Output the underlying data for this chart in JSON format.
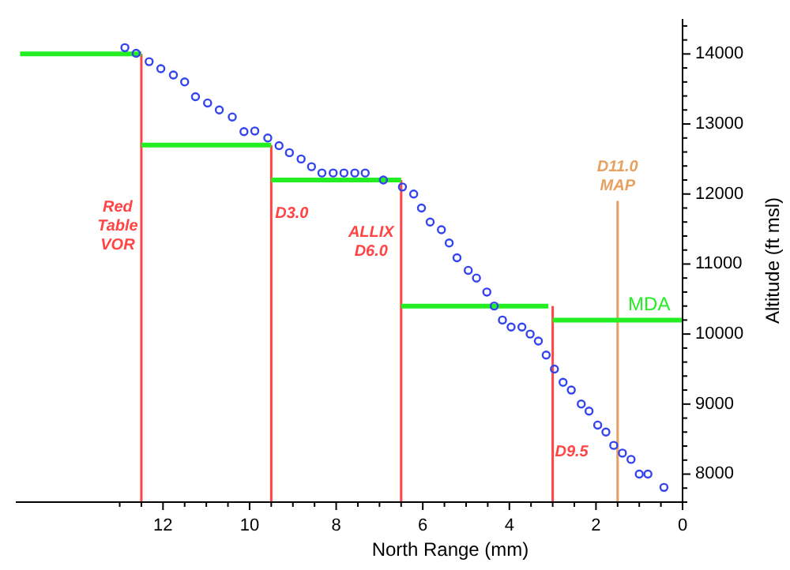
{
  "chart_data": {
    "type": "scatter",
    "xlabel": "North Range (mm)",
    "ylabel": "Altitude (ft msl)",
    "xlim": [
      15.4,
      0
    ],
    "ylim": [
      7600,
      14500
    ],
    "xticks": [
      {
        "value": 13,
        "label": null
      },
      {
        "value": 12.5,
        "label": null
      },
      12,
      {
        "value": 11.5,
        "label": null
      },
      {
        "value": 11,
        "label": null
      },
      {
        "value": 10.5,
        "label": null
      },
      10,
      {
        "value": 9.5,
        "label": null
      },
      {
        "value": 9,
        "label": null
      },
      {
        "value": 8.5,
        "label": null
      },
      8,
      {
        "value": 7.5,
        "label": null
      },
      {
        "value": 7,
        "label": null
      },
      {
        "value": 6.5,
        "label": null
      },
      6,
      {
        "value": 5.5,
        "label": null
      },
      {
        "value": 5,
        "label": null
      },
      {
        "value": 4.5,
        "label": null
      },
      4,
      {
        "value": 3.5,
        "label": null
      },
      {
        "value": 3,
        "label": null
      },
      {
        "value": 2.5,
        "label": null
      },
      2,
      {
        "value": 1.5,
        "label": null
      },
      {
        "value": 1,
        "label": null
      },
      {
        "value": 0.5,
        "label": null
      },
      0
    ],
    "yticks": [
      {
        "value": 7600,
        "label": null
      },
      {
        "value": 7800,
        "label": null
      },
      8000,
      {
        "value": 8200,
        "label": null
      },
      {
        "value": 8400,
        "label": null
      },
      {
        "value": 8600,
        "label": null
      },
      {
        "value": 8800,
        "label": null
      },
      9000,
      {
        "value": 9200,
        "label": null
      },
      {
        "value": 9400,
        "label": null
      },
      {
        "value": 9600,
        "label": null
      },
      {
        "value": 9800,
        "label": null
      },
      10000,
      {
        "value": 10200,
        "label": null
      },
      {
        "value": 10400,
        "label": null
      },
      {
        "value": 10600,
        "label": null
      },
      {
        "value": 10800,
        "label": null
      },
      11000,
      {
        "value": 11200,
        "label": null
      },
      {
        "value": 11400,
        "label": null
      },
      {
        "value": 11600,
        "label": null
      },
      {
        "value": 11800,
        "label": null
      },
      12000,
      {
        "value": 12200,
        "label": null
      },
      {
        "value": 12400,
        "label": null
      },
      {
        "value": 12600,
        "label": null
      },
      {
        "value": 12800,
        "label": null
      },
      13000,
      {
        "value": 13200,
        "label": null
      },
      {
        "value": 13400,
        "label": null
      },
      {
        "value": 13600,
        "label": null
      },
      {
        "value": 13800,
        "label": null
      },
      14000,
      {
        "value": 14200,
        "label": null
      },
      {
        "value": 14400,
        "label": null
      }
    ],
    "grid": false,
    "series": [
      {
        "type": "line",
        "name": "Red Table VOR",
        "color": "#ff4444",
        "x": [
          12.5,
          12.5
        ],
        "values": [
          14000,
          7600
        ]
      },
      {
        "type": "line",
        "name": "D3.0",
        "color": "#ff4444",
        "x": [
          9.5,
          9.5
        ],
        "values": [
          12700,
          7600
        ]
      },
      {
        "type": "line",
        "name": "ALLIX D6.0",
        "color": "#ff4444",
        "x": [
          6.5,
          6.5
        ],
        "values": [
          12200,
          7600
        ]
      },
      {
        "type": "line",
        "name": "D9.5",
        "color": "#ff4444",
        "x": [
          3,
          3
        ],
        "values": [
          10400,
          7600
        ]
      },
      {
        "type": "line",
        "name": "D11.0 MAP",
        "color": "#e8a060",
        "x": [
          1.5,
          1.5
        ],
        "values": [
          11900,
          7600
        ]
      },
      {
        "type": "line",
        "color": "#22ee22",
        "x": [
          15.3,
          12.5
        ],
        "values": [
          14000,
          14000
        ]
      },
      {
        "type": "line",
        "color": "#22ee22",
        "x": [
          12.5,
          9.5
        ],
        "values": [
          12700,
          12700
        ]
      },
      {
        "type": "line",
        "color": "#22ee22",
        "x": [
          9.5,
          6.5
        ],
        "values": [
          12200,
          12200
        ]
      },
      {
        "type": "line",
        "color": "#22ee22",
        "x": [
          6.5,
          3.1
        ],
        "values": [
          10400,
          10400
        ]
      },
      {
        "type": "line",
        "name": "MDA",
        "color": "#22ee22",
        "x": [
          3,
          0
        ],
        "values": [
          10200,
          10200
        ]
      },
      {
        "marker": "circle",
        "color": "#3344ee",
        "x": [
          12.88,
          12.62,
          12.32,
          12.05,
          11.76,
          11.5,
          11.25,
          10.97,
          10.7,
          10.4,
          10.13,
          9.88,
          9.58,
          9.32,
          9.08,
          8.81,
          8.57,
          8.33,
          8.07,
          7.82,
          7.57,
          7.33,
          6.91,
          6.47,
          6.21,
          6.03,
          5.83,
          5.57,
          5.39,
          5.21,
          4.95,
          4.76,
          4.52,
          4.35,
          4.16,
          3.96,
          3.71,
          3.52,
          3.33,
          3.15,
          2.96,
          2.76,
          2.57,
          2.34,
          2.16,
          1.96,
          1.77,
          1.59,
          1.39,
          1.19,
          1,
          0.8,
          0.43
        ],
        "values": [
          14090,
          14010,
          13890,
          13790,
          13700,
          13600,
          13390,
          13300,
          13200,
          13100,
          12890,
          12900,
          12800,
          12690,
          12590,
          12500,
          12390,
          12300,
          12300,
          12300,
          12300,
          12300,
          12200,
          12100,
          12000,
          11800,
          11600,
          11490,
          11300,
          11090,
          10910,
          10800,
          10600,
          10400,
          10200,
          10100,
          10100,
          10000,
          9900,
          9700,
          9500,
          9310,
          9200,
          9000,
          8900,
          8700,
          8600,
          8410,
          8300,
          8210,
          8000,
          8000,
          7810
        ]
      }
    ]
  }
}
